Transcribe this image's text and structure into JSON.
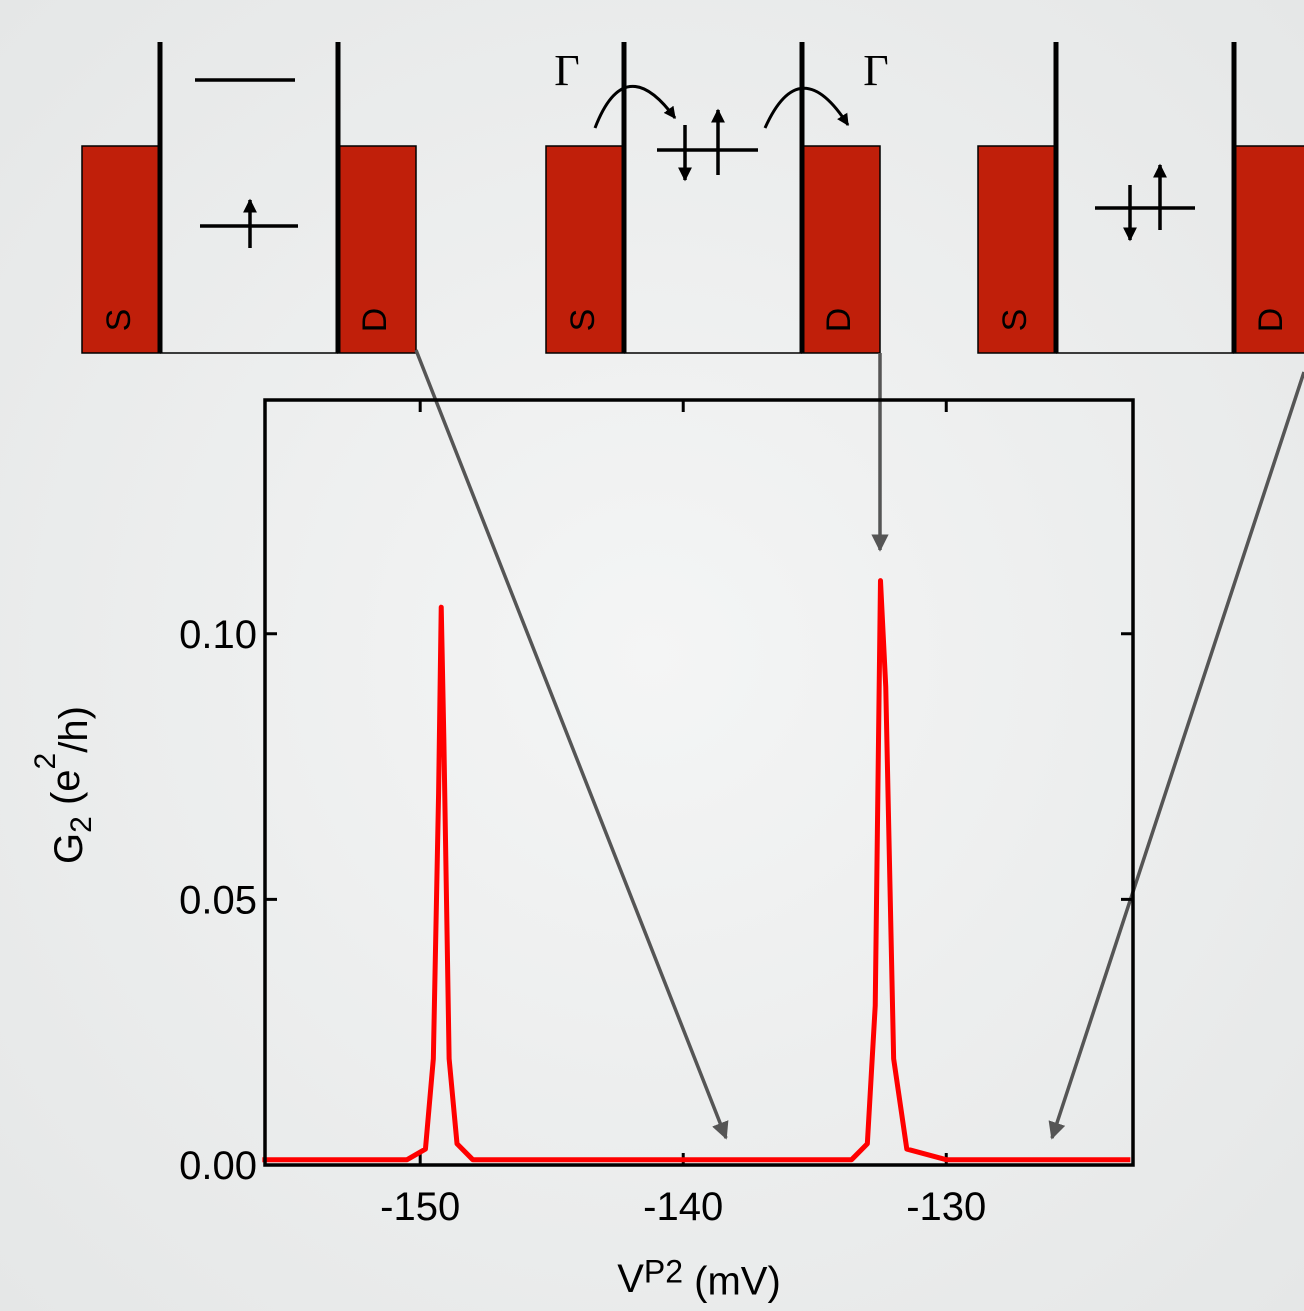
{
  "chart_data": {
    "type": "line",
    "x_label_parts": [
      "V",
      "P2",
      "  (mV)"
    ],
    "y_label_parts": [
      "G",
      "2",
      "  (e",
      "2",
      "/h)"
    ],
    "x": [
      -156,
      -153,
      -150.5,
      -149.8,
      -149.5,
      -149.3,
      -149.2,
      -149.1,
      -148.9,
      -148.6,
      -148.0,
      -145,
      -142,
      -139,
      -136,
      -133.6,
      -133.0,
      -132.7,
      -132.5,
      -132.3,
      -132.0,
      -131.5,
      -130,
      -127,
      -124,
      -123
    ],
    "series": [
      {
        "color": "#ff0000",
        "values": [
          0.001,
          0.001,
          0.001,
          0.003,
          0.02,
          0.07,
          0.105,
          0.08,
          0.02,
          0.004,
          0.001,
          0.001,
          0.001,
          0.001,
          0.001,
          0.001,
          0.004,
          0.03,
          0.11,
          0.09,
          0.02,
          0.003,
          0.001,
          0.001,
          0.001,
          0.001
        ]
      }
    ],
    "xlim": [
      -155.9,
      -122.9
    ],
    "ylim": [
      0,
      0.144
    ],
    "xticks": [
      -150,
      -140,
      -130
    ],
    "yticks": [
      {
        "value": 0,
        "label": "0.00"
      },
      {
        "value": 0.05,
        "label": "0.05"
      },
      {
        "value": 0.1,
        "label": "0.10"
      }
    ]
  },
  "diagrams": [
    {
      "source": "S",
      "drain": "D"
    },
    {
      "source": "S",
      "drain": "D"
    },
    {
      "source": "S",
      "drain": "D"
    }
  ],
  "gamma_labels": [
    "Γ",
    "Γ"
  ]
}
